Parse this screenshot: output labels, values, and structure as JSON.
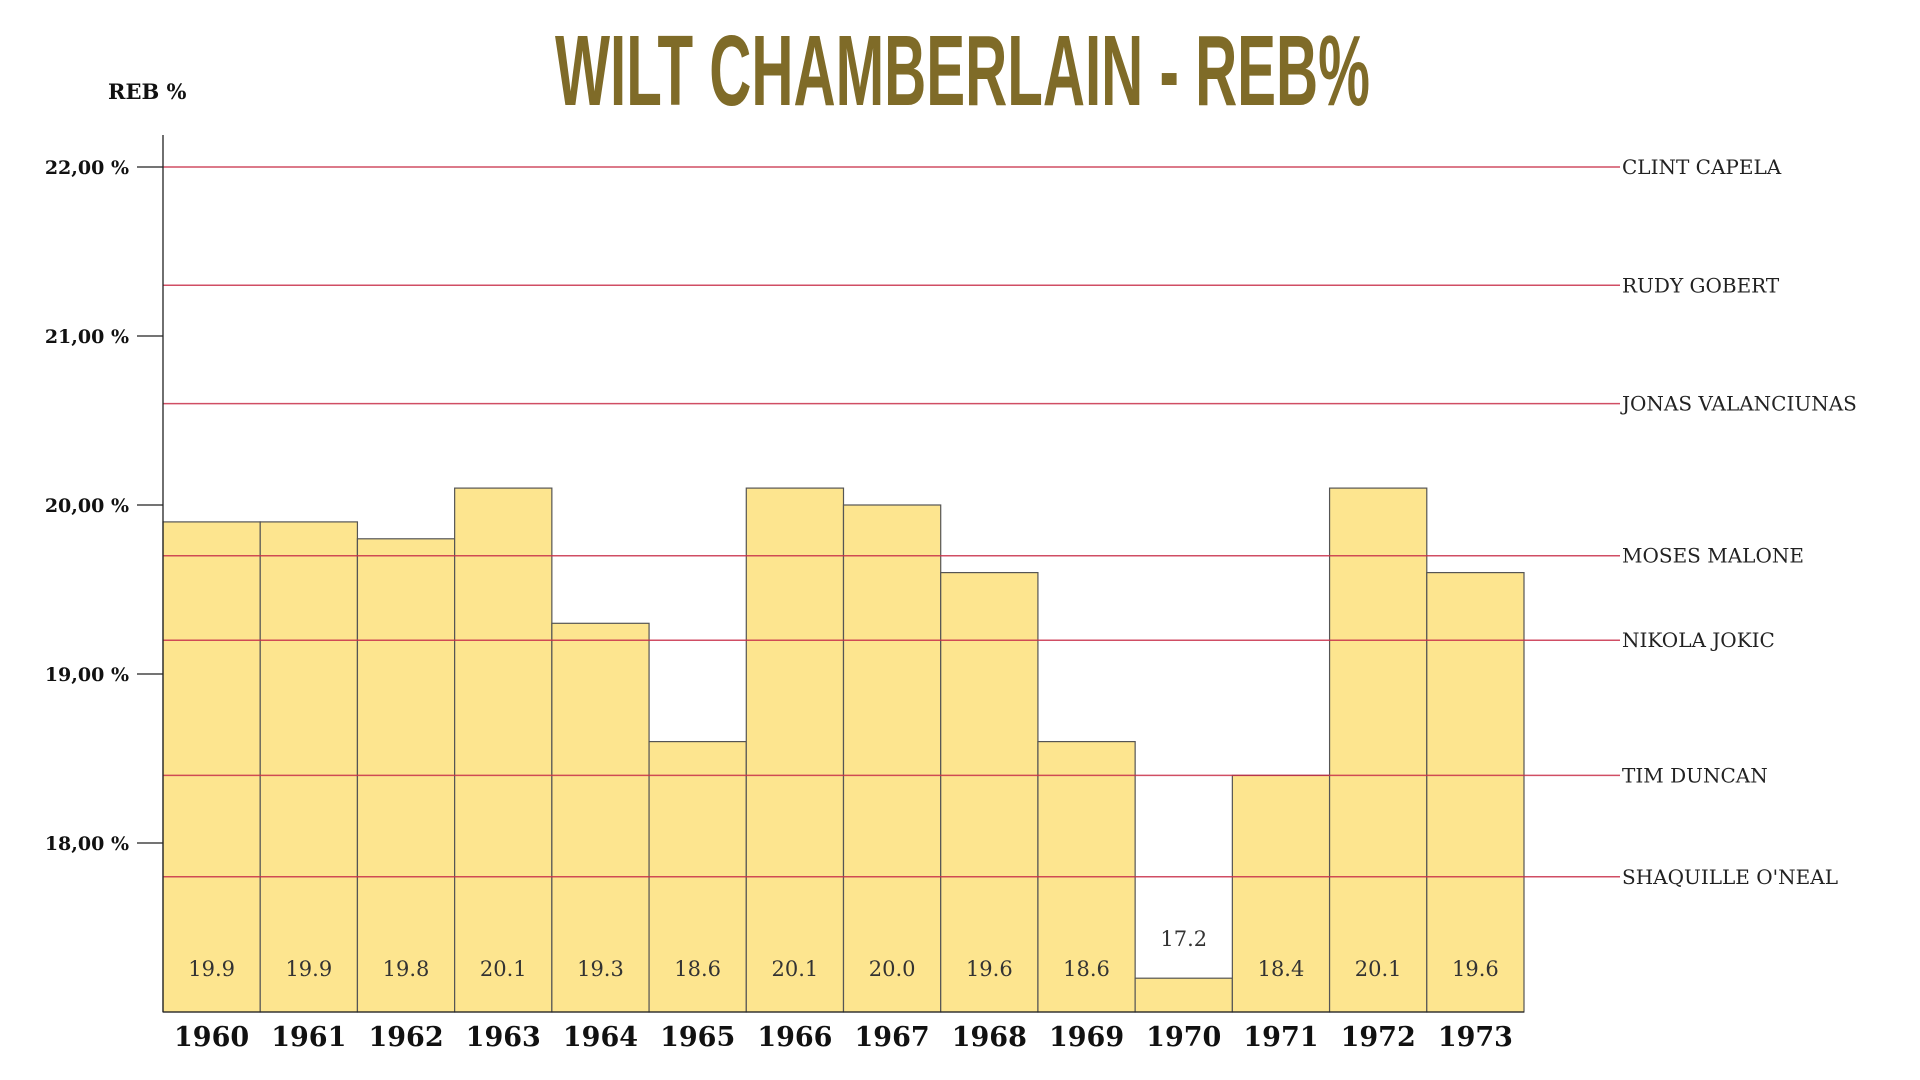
{
  "chart_data": {
    "type": "bar",
    "title": "WILT CHAMBERLAIN - REB%",
    "ylabel": "REB %",
    "xlabel": "",
    "ylim": [
      17,
      22.2
    ],
    "yticks": [
      {
        "value": 22,
        "label": "22,00 %"
      },
      {
        "value": 21,
        "label": "21,00 %"
      },
      {
        "value": 20,
        "label": "20,00 %"
      },
      {
        "value": 19,
        "label": "19,00 %"
      },
      {
        "value": 18,
        "label": "18,00 %"
      }
    ],
    "categories": [
      "1960",
      "1961",
      "1962",
      "1963",
      "1964",
      "1965",
      "1966",
      "1967",
      "1968",
      "1969",
      "1970",
      "1971",
      "1972",
      "1973"
    ],
    "values": [
      19.9,
      19.9,
      19.8,
      20.1,
      19.3,
      18.6,
      20.1,
      20.0,
      19.6,
      18.6,
      17.2,
      18.4,
      20.1,
      19.6
    ],
    "value_labels": [
      "19.9",
      "19.9",
      "19.8",
      "20.1",
      "19.3",
      "18.6",
      "20.1",
      "20.0",
      "19.6",
      "18.6",
      "17.2",
      "18.4",
      "20.1",
      "19.6"
    ],
    "reference_lines": [
      {
        "name": "CLINT CAPELA",
        "value": 22.0
      },
      {
        "name": "RUDY GOBERT",
        "value": 21.3
      },
      {
        "name": "JONAS VALANCIUNAS",
        "value": 20.6
      },
      {
        "name": "MOSES MALONE",
        "value": 19.7
      },
      {
        "name": "NIKOLA JOKIC",
        "value": 19.2
      },
      {
        "name": "TIM DUNCAN",
        "value": 18.4
      },
      {
        "name": "SHAQUILLE O'NEAL",
        "value": 17.8
      }
    ],
    "grid": false,
    "colors": {
      "title": "#7f6b28",
      "bar_fill": "#fde58f",
      "bar_stroke": "#555555",
      "reference_line": "#c8304a"
    }
  }
}
